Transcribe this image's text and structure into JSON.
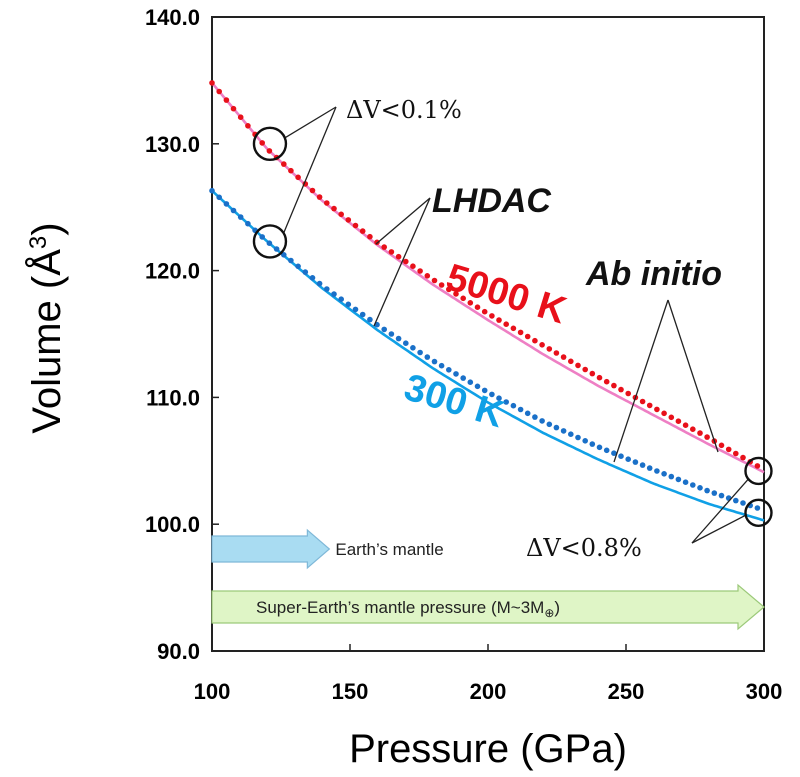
{
  "chart_data": {
    "type": "line",
    "xlabel": "Pressure (GPa)",
    "ylabel_main": "Volume (Å",
    "ylabel_sup": "3",
    "ylabel_close": ")",
    "xlim": [
      100,
      300
    ],
    "ylim": [
      90,
      140
    ],
    "x_ticks": [
      100,
      150,
      200,
      250,
      300
    ],
    "x_tick_labels": [
      "100",
      "150",
      "200",
      "250",
      "300"
    ],
    "y_ticks": [
      90,
      100,
      110,
      120,
      130,
      140
    ],
    "y_tick_labels": [
      "90.0",
      "100.0",
      "110.0",
      "120.0",
      "130.0",
      "140.0"
    ],
    "grid": false,
    "series": [
      {
        "name": "5000 K",
        "method": "LHDAC",
        "style": "dotted",
        "color": "#e8101a",
        "x": [
          100,
          120,
          140,
          160,
          180,
          200,
          220,
          240,
          260,
          280,
          300
        ],
        "y": [
          134.8,
          129.6,
          125.6,
          122.2,
          119.3,
          116.6,
          114.1,
          111.6,
          109.2,
          106.8,
          104.3
        ]
      },
      {
        "name": "5000 K",
        "method": "Ab initio",
        "style": "solid",
        "color": "#ee7fc4",
        "x": [
          100,
          120,
          140,
          160,
          180,
          200,
          220,
          240,
          260,
          280,
          300
        ],
        "y": [
          134.8,
          129.6,
          125.5,
          122.0,
          118.9,
          116.1,
          113.4,
          110.9,
          108.6,
          106.3,
          104.1
        ]
      },
      {
        "name": "300 K",
        "method": "LHDAC",
        "style": "dotted",
        "color": "#1a70c8",
        "x": [
          100,
          120,
          140,
          160,
          180,
          200,
          220,
          240,
          260,
          280,
          300
        ],
        "y": [
          126.3,
          122.3,
          118.8,
          115.7,
          112.9,
          110.4,
          108.1,
          106.1,
          104.3,
          102.6,
          101.1
        ]
      },
      {
        "name": "300 K",
        "method": "Ab initio",
        "style": "solid",
        "color": "#10a0e6",
        "x": [
          100,
          120,
          140,
          160,
          180,
          200,
          220,
          240,
          260,
          280,
          300
        ],
        "y": [
          126.3,
          122.3,
          118.6,
          115.3,
          112.3,
          109.6,
          107.2,
          105.1,
          103.2,
          101.6,
          100.3
        ]
      }
    ],
    "series_labels": [
      {
        "text": "5000 K",
        "color": "#e8101a"
      },
      {
        "text": "300 K",
        "color": "#10a0e6"
      }
    ],
    "annotations": [
      {
        "text": "ΔV<0.1%",
        "kind": "delta"
      },
      {
        "text": "LHDAC",
        "kind": "method"
      },
      {
        "text": "Ab initio",
        "kind": "method"
      },
      {
        "text": "ΔV<0.8%",
        "kind": "delta"
      }
    ],
    "circle_markers": [
      {
        "x": 121,
        "y": 130.0
      },
      {
        "x": 121,
        "y": 122.3
      },
      {
        "x": 298,
        "y": 104.2
      },
      {
        "x": 298,
        "y": 100.9
      }
    ],
    "range_arrows": [
      {
        "label": "Earth’s mantle",
        "x_start": 100,
        "x_end": 136,
        "color": "#a9dcf2"
      },
      {
        "label_main": "Super-Earth’s mantle pressure (M~3M",
        "label_sub": "⊕",
        "label_close": ")",
        "x_start": 100,
        "x_end": 300,
        "color": "#dff5c6"
      }
    ]
  }
}
